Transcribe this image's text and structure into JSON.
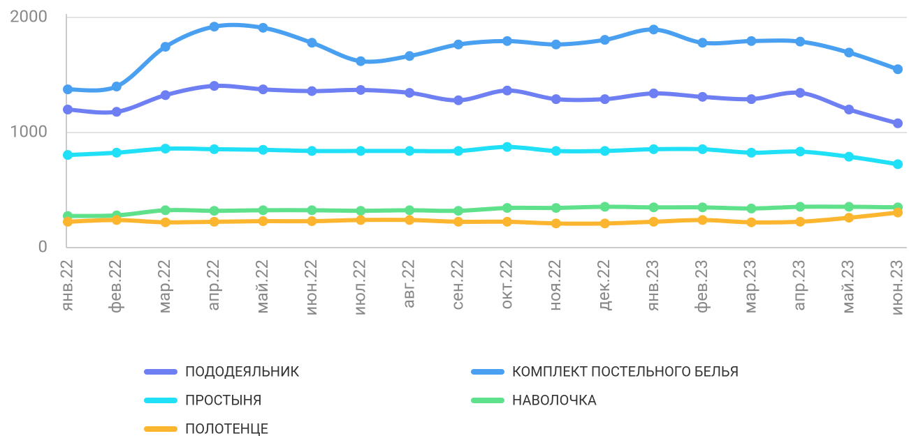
{
  "chart_data": {
    "type": "line",
    "categories": [
      "янв.22",
      "фев.22",
      "мар.22",
      "апр.22",
      "май.22",
      "июн.22",
      "июл.22",
      "авг.22",
      "сен.22",
      "окт.22",
      "ноя.22",
      "дек.22",
      "янв.23",
      "фев.23",
      "мар.23",
      "апр.23",
      "май.23",
      "июн.23"
    ],
    "series": [
      {
        "name": "ПОДОДЕЯЛЬНИК",
        "color": "#6e7ff3",
        "values": [
          1200,
          1180,
          1325,
          1405,
          1375,
          1360,
          1370,
          1345,
          1280,
          1365,
          1290,
          1290,
          1340,
          1310,
          1290,
          1345,
          1200,
          1080
        ]
      },
      {
        "name": "КОМПЛЕКТ ПОСТЕЛЬНОГО БЕЛЬЯ",
        "color": "#4aa0f0",
        "values": [
          1375,
          1400,
          1745,
          1920,
          1910,
          1780,
          1620,
          1665,
          1765,
          1795,
          1765,
          1805,
          1895,
          1780,
          1795,
          1790,
          1695,
          1550
        ]
      },
      {
        "name": "ПРОСТЫНЯ",
        "color": "#1fe0f6",
        "values": [
          805,
          825,
          860,
          855,
          850,
          840,
          840,
          840,
          840,
          875,
          840,
          840,
          855,
          855,
          825,
          835,
          790,
          725
        ]
      },
      {
        "name": "НАВОЛОЧКА",
        "color": "#5fe08a",
        "values": [
          275,
          280,
          325,
          320,
          325,
          325,
          320,
          325,
          320,
          345,
          345,
          355,
          350,
          350,
          340,
          355,
          355,
          350
        ]
      },
      {
        "name": "ПОЛОТЕНЦЕ",
        "color": "#fbb52e",
        "values": [
          225,
          240,
          220,
          225,
          230,
          230,
          240,
          240,
          225,
          225,
          210,
          210,
          225,
          240,
          220,
          225,
          260,
          305
        ]
      }
    ],
    "ylim": [
      0,
      2000
    ],
    "yticks": [
      0,
      1000,
      2000
    ],
    "grid": true
  }
}
